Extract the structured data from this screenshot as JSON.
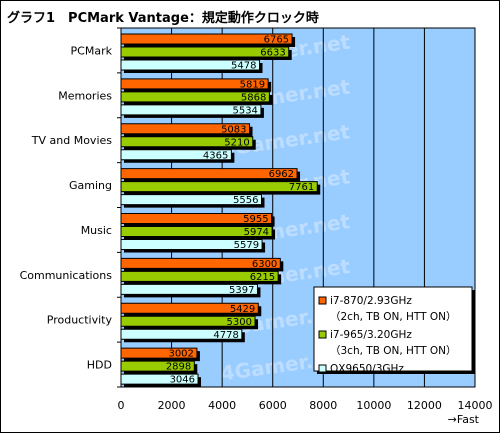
{
  "chart_data": {
    "type": "bar",
    "orientation": "horizontal",
    "title": "グラフ1　PCMark Vantage：規定動作クロック時",
    "categories": [
      "PCMark",
      "Memories",
      "TV and Movies",
      "Gaming",
      "Music",
      "Communications",
      "Productivity",
      "HDD"
    ],
    "series": [
      {
        "name": "i7-870/2.93GHz (2ch, TB ON, HTT ON)",
        "legend_lines": [
          "i7-870/2.93GHz",
          "（2ch, TB ON, HTT ON）"
        ],
        "color": "#ff6600",
        "values": [
          6765,
          5819,
          5083,
          6962,
          5955,
          6300,
          5429,
          3002
        ]
      },
      {
        "name": "i7-965/3.20GHz (3ch, TB ON, HTT ON)",
        "legend_lines": [
          "i7-965/3.20GHz",
          "（3ch, TB ON, HTT ON）"
        ],
        "color": "#99cc00",
        "values": [
          6633,
          5868,
          5210,
          7761,
          5974,
          6215,
          5300,
          2898
        ]
      },
      {
        "name": "QX9650/3GHz",
        "legend_lines": [
          "QX9650/3GHz"
        ],
        "color": "#ccffff",
        "values": [
          5478,
          5534,
          4365,
          5556,
          5579,
          5397,
          4778,
          3046
        ]
      }
    ],
    "xlim": [
      0,
      14000
    ],
    "xticks": [
      "0",
      "2000",
      "4000",
      "6000",
      "8000",
      "10000",
      "12000",
      "14000"
    ],
    "xlabel": "→Fast",
    "grid": true,
    "legend_position": "right",
    "plot_background": "#99ccff",
    "watermark": "4Gamer.net"
  }
}
